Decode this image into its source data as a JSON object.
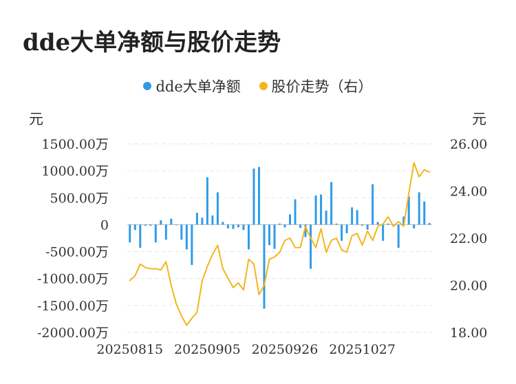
{
  "chart_data": {
    "type": "bar+line",
    "title": "dde大单净额与股价走势",
    "legend": {
      "placement": "top-center",
      "items": [
        {
          "name": "dde大单净额",
          "color": "#2f9be8"
        },
        {
          "name": "股价走势（右）",
          "color": "#f3b51c"
        }
      ]
    },
    "y_left": {
      "unit": "元",
      "range": [
        -2000,
        1500
      ],
      "ticks": [
        1500,
        1000,
        500,
        0,
        -500,
        -1000,
        -1500,
        -2000
      ],
      "tick_labels": [
        "1500.00万",
        "1000.00万",
        "500.00万",
        "0",
        "-500.00万",
        "-1000.00万",
        "-1500.00万",
        "-2000.00万"
      ]
    },
    "y_right": {
      "unit": "元",
      "range": [
        18,
        26
      ],
      "ticks": [
        26,
        24,
        22,
        20,
        18
      ],
      "tick_labels": [
        "26.00",
        "24.00",
        "22.00",
        "20.00",
        "18.00"
      ]
    },
    "x_tick_labels": [
      "20250815",
      "20250905",
      "20250926",
      "20251027"
    ],
    "x_tick_index": [
      0,
      15,
      30,
      45
    ],
    "grid": true,
    "series": [
      {
        "name": "dde大单净额",
        "type": "bar",
        "color": "#2f9be8",
        "values": [
          -330,
          -100,
          -430,
          -20,
          -20,
          -330,
          80,
          -280,
          110,
          0,
          -280,
          -460,
          -750,
          220,
          130,
          880,
          170,
          600,
          50,
          -70,
          -80,
          -50,
          -100,
          -460,
          1040,
          1070,
          -1560,
          -380,
          -450,
          20,
          -50,
          190,
          470,
          -60,
          -230,
          -820,
          540,
          560,
          260,
          790,
          20,
          -300,
          -160,
          320,
          270,
          -20,
          -90,
          750,
          50,
          -300,
          20,
          0,
          -430,
          150,
          520,
          -70,
          600,
          430,
          30
        ],
        "unit": "万"
      },
      {
        "name": "股价走势（右）",
        "type": "line",
        "color": "#f3b51c",
        "values": [
          20.2,
          20.4,
          20.9,
          20.75,
          20.7,
          20.7,
          20.65,
          21.0,
          20.0,
          19.2,
          18.7,
          18.3,
          18.6,
          18.85,
          20.2,
          20.8,
          21.3,
          21.7,
          20.7,
          20.3,
          19.9,
          20.1,
          19.8,
          21.1,
          20.9,
          19.6,
          20.0,
          21.1,
          21.2,
          21.4,
          21.9,
          22.0,
          21.6,
          21.6,
          22.5,
          22.0,
          21.6,
          22.4,
          21.4,
          21.9,
          22.0,
          21.5,
          21.4,
          22.1,
          22.2,
          21.7,
          22.3,
          21.9,
          22.5,
          22.6,
          22.9,
          22.5,
          22.7,
          22.5,
          23.9,
          25.2,
          24.6,
          24.9,
          24.8
        ],
        "unit": "元"
      }
    ]
  }
}
